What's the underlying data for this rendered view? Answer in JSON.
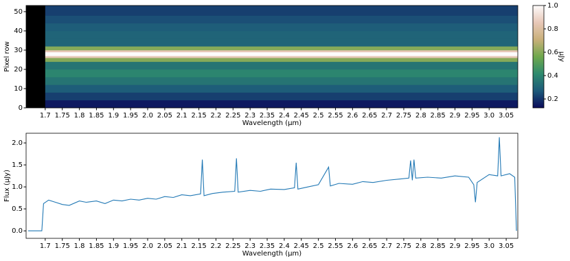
{
  "chart_data": [
    {
      "type": "heatmap",
      "xlabel": "Wavelength (μm)",
      "ylabel": "Pixel row",
      "xlim": [
        1.644,
        3.084
      ],
      "ylim": [
        0,
        53.2
      ],
      "xticks": [
        1.7,
        1.75,
        1.8,
        1.85,
        1.9,
        1.95,
        {
          "value": 2,
          "label": "2.0"
        },
        2.05,
        2.1,
        2.15,
        2.2,
        2.25,
        2.3,
        2.35,
        2.4,
        2.45,
        2.5,
        2.55,
        2.6,
        2.65,
        2.7,
        2.75,
        2.8,
        2.85,
        2.9,
        2.95,
        {
          "value": 3,
          "label": "3.0"
        },
        3.05
      ],
      "yticks": [
        0,
        10,
        20,
        30,
        40,
        50
      ],
      "image_xlim": [
        1.7,
        3.084
      ],
      "row_edges": [
        0,
        4,
        8,
        12,
        16,
        20,
        24,
        26,
        27,
        29,
        30,
        32,
        36,
        40,
        44,
        48,
        53.2
      ],
      "values": [
        0.15,
        0.22,
        0.28,
        0.35,
        0.4,
        0.35,
        0.6,
        0.85,
        1.0,
        0.85,
        0.6,
        0.3,
        0.3,
        0.28,
        0.25,
        0.22
      ],
      "colormap": [
        "#0b0b5a",
        "#1d5a7a",
        "#2e8a6e",
        "#6fa84d",
        "#c9b07a",
        "#e8c8b8",
        "#fdfbfb"
      ],
      "colorbar": {
        "label": "μJy",
        "clim": [
          0.124,
          1.0
        ],
        "ticks": [
          0.2,
          0.4,
          0.6,
          0.8,
          {
            "value": 1,
            "label": "1.0"
          }
        ]
      }
    },
    {
      "type": "line",
      "xlabel": "Wavelength (μm)",
      "ylabel": "Flux (μJy)",
      "xlim": [
        1.644,
        3.084
      ],
      "ylim": [
        -0.17,
        2.22
      ],
      "xticks": [
        1.7,
        1.75,
        1.8,
        1.85,
        1.9,
        1.95,
        {
          "value": 2,
          "label": "2.0"
        },
        2.05,
        2.1,
        2.15,
        2.2,
        2.25,
        2.3,
        2.35,
        2.4,
        2.45,
        2.5,
        2.55,
        2.6,
        2.65,
        2.7,
        2.75,
        2.8,
        2.85,
        2.9,
        2.95,
        {
          "value": 3,
          "label": "3.0"
        },
        3.05
      ],
      "yticks": [
        {
          "value": 0,
          "label": "0.0"
        },
        0.5,
        {
          "value": 1,
          "label": "1.0"
        },
        1.5,
        {
          "value": 2,
          "label": "2.0"
        }
      ],
      "color": "#1f77b4",
      "x": [
        1.65,
        1.69,
        1.695,
        1.71,
        1.73,
        1.75,
        1.77,
        1.8,
        1.82,
        1.85,
        1.875,
        1.9,
        1.925,
        1.95,
        1.975,
        2.0,
        2.025,
        2.05,
        2.075,
        2.1,
        2.125,
        2.155,
        2.16,
        2.165,
        2.19,
        2.22,
        2.255,
        2.26,
        2.265,
        2.3,
        2.33,
        2.36,
        2.4,
        2.43,
        2.435,
        2.44,
        2.47,
        2.5,
        2.53,
        2.535,
        2.56,
        2.6,
        2.63,
        2.66,
        2.7,
        2.74,
        2.765,
        2.77,
        2.775,
        2.78,
        2.785,
        2.82,
        2.86,
        2.9,
        2.94,
        2.955,
        2.96,
        2.965,
        3.0,
        3.025,
        3.03,
        3.035,
        3.06,
        3.075,
        3.08
      ],
      "values": [
        0,
        0,
        0.62,
        0.7,
        0.65,
        0.6,
        0.58,
        0.68,
        0.65,
        0.68,
        0.62,
        0.7,
        0.68,
        0.72,
        0.7,
        0.74,
        0.72,
        0.78,
        0.76,
        0.82,
        0.8,
        0.84,
        1.62,
        0.8,
        0.85,
        0.88,
        0.9,
        1.65,
        0.88,
        0.92,
        0.9,
        0.95,
        0.94,
        0.98,
        1.55,
        0.95,
        1.0,
        1.05,
        1.45,
        1.02,
        1.08,
        1.06,
        1.12,
        1.1,
        1.15,
        1.18,
        1.2,
        1.6,
        1.15,
        1.62,
        1.2,
        1.22,
        1.2,
        1.25,
        1.22,
        1.05,
        0.65,
        1.1,
        1.28,
        1.25,
        2.13,
        1.25,
        1.3,
        1.22,
        0
      ]
    }
  ]
}
